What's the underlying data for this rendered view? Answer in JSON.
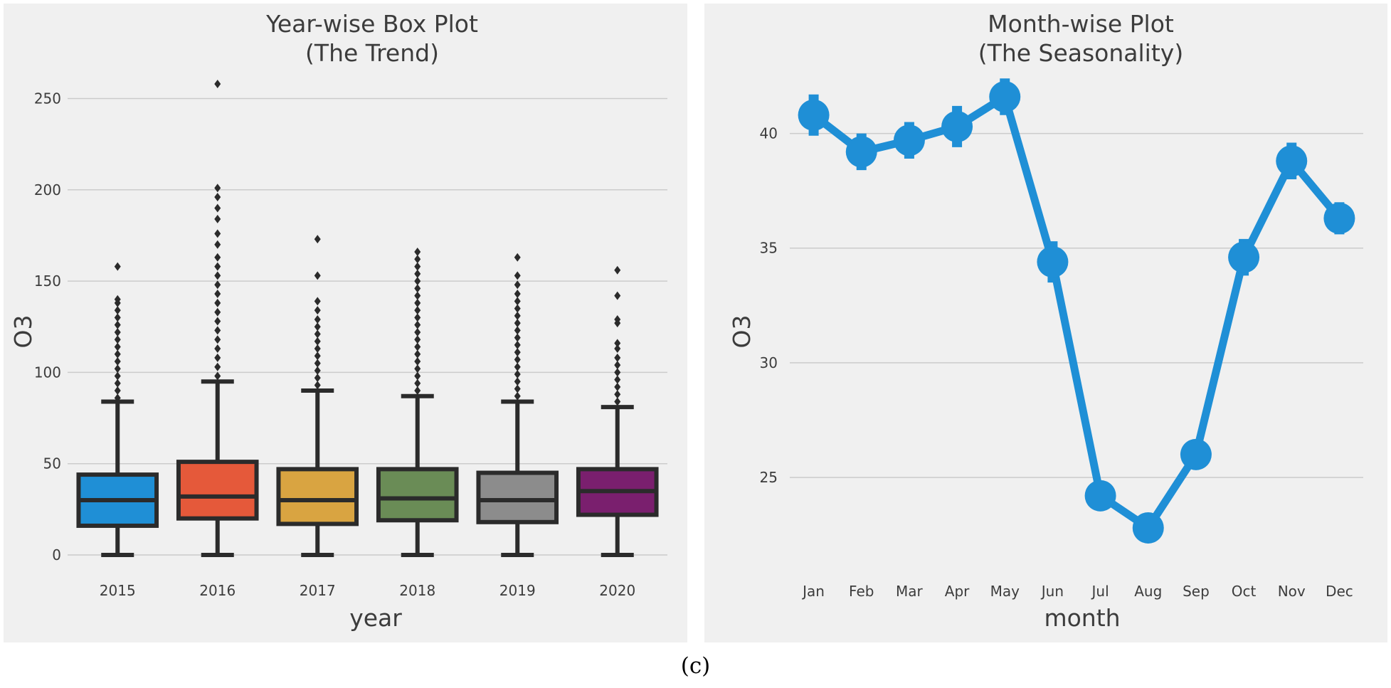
{
  "caption": "(c)",
  "colors": {
    "background": "#f0f0f0",
    "grid": "#cbcbcb",
    "text": "#3c3c3c",
    "line": "#1f8fd6",
    "box_edge": "#2b2b2b"
  },
  "chart_data": [
    {
      "type": "box",
      "title_line1": "Year-wise Box Plot",
      "title_line2": "(The Trend)",
      "xlabel": "year",
      "ylabel": "O3",
      "ylim": [
        0,
        265
      ],
      "yticks": [
        0,
        50,
        100,
        150,
        200,
        250
      ],
      "categories": [
        "2015",
        "2016",
        "2017",
        "2018",
        "2019",
        "2020"
      ],
      "colors": [
        "#1f8fd6",
        "#e5593a",
        "#d9a441",
        "#6a8c56",
        "#8c8c8c",
        "#7a1f6e"
      ],
      "boxes": [
        {
          "min": 0,
          "q1": 16,
          "median": 30,
          "q3": 44,
          "whisker_high": 84,
          "outliers": [
            86,
            90,
            94,
            98,
            102,
            106,
            110,
            114,
            118,
            122,
            126,
            130,
            134,
            138,
            140,
            158
          ]
        },
        {
          "min": 0,
          "q1": 20,
          "median": 32,
          "q3": 51,
          "whisker_high": 95,
          "outliers": [
            98,
            103,
            108,
            113,
            118,
            123,
            128,
            133,
            138,
            143,
            148,
            153,
            158,
            163,
            170,
            176,
            184,
            190,
            196,
            201,
            258
          ]
        },
        {
          "min": 0,
          "q1": 17,
          "median": 30,
          "q3": 47,
          "whisker_high": 90,
          "outliers": [
            93,
            97,
            101,
            105,
            109,
            113,
            117,
            121,
            125,
            129,
            134,
            139,
            153,
            173
          ]
        },
        {
          "min": 0,
          "q1": 19,
          "median": 31,
          "q3": 47,
          "whisker_high": 87,
          "outliers": [
            90,
            94,
            98,
            102,
            106,
            110,
            114,
            118,
            122,
            126,
            130,
            134,
            138,
            142,
            146,
            150,
            154,
            158,
            162,
            166
          ]
        },
        {
          "min": 0,
          "q1": 18,
          "median": 30,
          "q3": 45,
          "whisker_high": 84,
          "outliers": [
            87,
            91,
            95,
            99,
            103,
            107,
            111,
            115,
            119,
            123,
            127,
            131,
            135,
            139,
            143,
            148,
            153,
            163
          ]
        },
        {
          "min": 0,
          "q1": 22,
          "median": 35,
          "q3": 47,
          "whisker_high": 81,
          "outliers": [
            84,
            88,
            92,
            96,
            100,
            104,
            108,
            113,
            116,
            127,
            129,
            142,
            156
          ]
        }
      ]
    },
    {
      "type": "line",
      "title_line1": "Month-wise Plot",
      "title_line2": "(The Seasonality)",
      "xlabel": "month",
      "ylabel": "O3",
      "ylim": [
        21.0,
        42.5
      ],
      "yticks": [
        25,
        30,
        35,
        40
      ],
      "categories": [
        "Jan",
        "Feb",
        "Mar",
        "Apr",
        "May",
        "Jun",
        "Jul",
        "Aug",
        "Sep",
        "Oct",
        "Nov",
        "Dec"
      ],
      "values": [
        40.8,
        39.2,
        39.7,
        40.3,
        41.6,
        34.4,
        24.2,
        22.8,
        26.0,
        34.6,
        38.8,
        36.3
      ],
      "ci": [
        0.9,
        0.8,
        0.8,
        0.9,
        0.8,
        0.9,
        0.4,
        0.4,
        0.5,
        0.8,
        0.8,
        0.7
      ]
    }
  ]
}
